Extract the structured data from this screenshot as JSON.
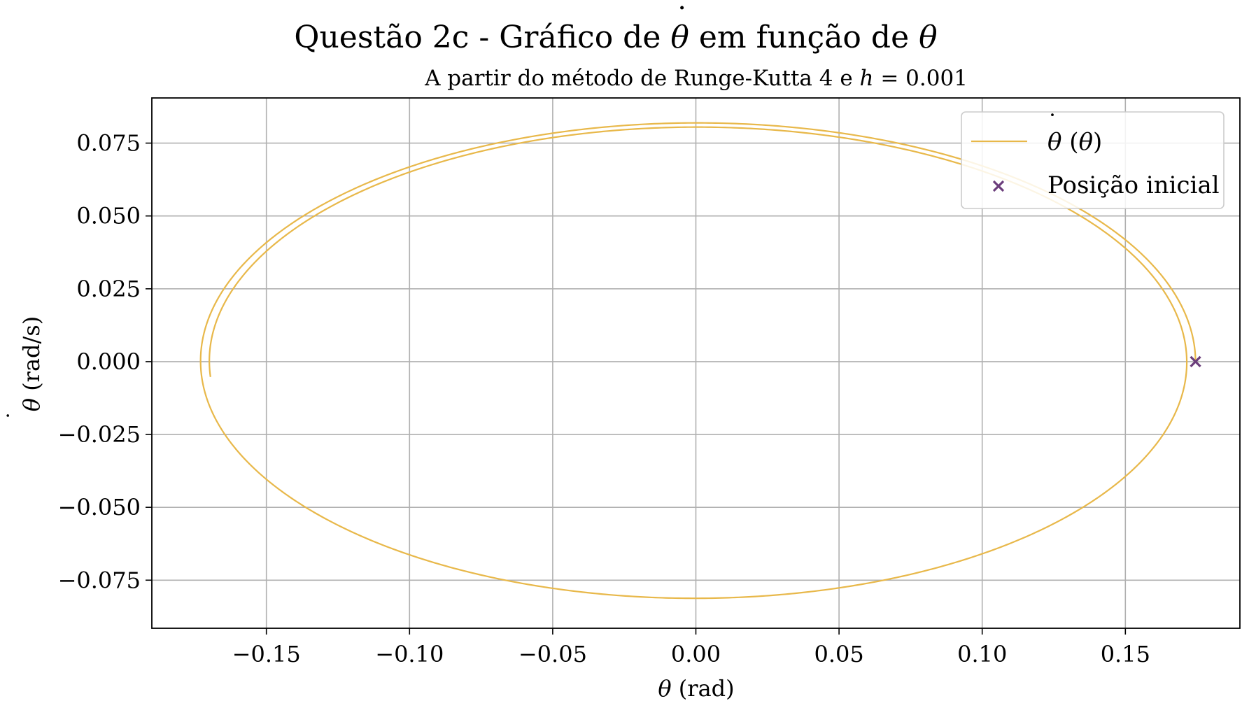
{
  "chart_data": {
    "type": "line",
    "title_parts": [
      "Questão 2c - Gráfico de ",
      "θ",
      " em função de ",
      "θ"
    ],
    "subtitle_parts": [
      "A partir do método de Runge-Kutta 4 e ",
      "h",
      " = 0.001"
    ],
    "xlabel_parts": [
      "θ",
      " (rad)"
    ],
    "ylabel_parts": [
      "θ",
      " (rad/s)"
    ],
    "xlim": [
      -0.19,
      0.19
    ],
    "ylim": [
      -0.0915,
      0.0905
    ],
    "xticks": [
      -0.15,
      -0.1,
      -0.05,
      0.0,
      0.05,
      0.1,
      0.15
    ],
    "xtick_labels": [
      "−0.15",
      "−0.10",
      "−0.05",
      "0.00",
      "0.05",
      "0.10",
      "0.15"
    ],
    "yticks": [
      0.075,
      0.05,
      0.025,
      0.0,
      -0.025,
      -0.05,
      -0.075
    ],
    "ytick_labels": [
      "0.075",
      "0.050",
      "0.025",
      "0.000",
      "−0.025",
      "−0.050",
      "−0.075"
    ],
    "grid": true,
    "legend_position": "top-right",
    "series": [
      {
        "name_parts": [
          "θ",
          " (",
          "θ",
          ")"
        ],
        "kind": "line",
        "color": "#e8b84a",
        "theta0": 0.1745,
        "omega_max": 0.0823,
        "theta_end": -0.1705,
        "omega_end": 0.0112
      },
      {
        "name": "Posição inicial",
        "kind": "scatter",
        "marker": "x",
        "color": "#6b3d7b",
        "points": [
          {
            "x": 0.1745,
            "y": 0.0
          }
        ]
      }
    ]
  }
}
